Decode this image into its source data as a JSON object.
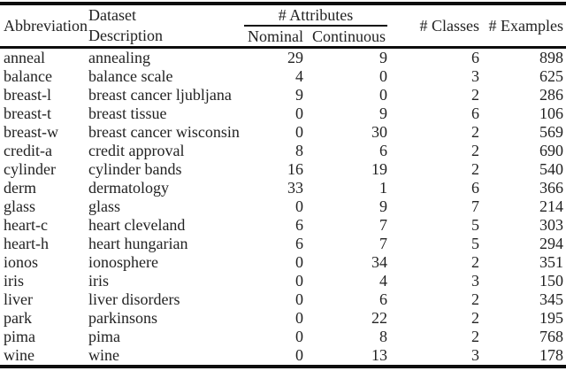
{
  "colors": {
    "background": "#ffffff",
    "text": "#222222",
    "rule": "#0d0d0d"
  },
  "table": {
    "header": {
      "abbreviation": "Abbreviation",
      "dataset_line1": "Dataset",
      "dataset_line2": "Description",
      "attributes_group": "# Attributes",
      "nominal": "Nominal",
      "continuous": "Continuous",
      "classes": "# Classes",
      "examples": "# Examples"
    },
    "row_keys": [
      "abbr",
      "desc",
      "nominal",
      "continuous",
      "classes",
      "examples"
    ],
    "rows": [
      {
        "abbr": "anneal",
        "desc": "annealing",
        "nominal": 29,
        "continuous": 9,
        "classes": 6,
        "examples": 898
      },
      {
        "abbr": "balance",
        "desc": "balance scale",
        "nominal": 4,
        "continuous": 0,
        "classes": 3,
        "examples": 625
      },
      {
        "abbr": "breast-l",
        "desc": "breast cancer ljubljana",
        "nominal": 9,
        "continuous": 0,
        "classes": 2,
        "examples": 286
      },
      {
        "abbr": "breast-t",
        "desc": "breast tissue",
        "nominal": 0,
        "continuous": 9,
        "classes": 6,
        "examples": 106
      },
      {
        "abbr": "breast-w",
        "desc": "breast cancer wisconsin",
        "nominal": 0,
        "continuous": 30,
        "classes": 2,
        "examples": 569
      },
      {
        "abbr": "credit-a",
        "desc": "credit approval",
        "nominal": 8,
        "continuous": 6,
        "classes": 2,
        "examples": 690
      },
      {
        "abbr": "cylinder",
        "desc": "cylinder bands",
        "nominal": 16,
        "continuous": 19,
        "classes": 2,
        "examples": 540
      },
      {
        "abbr": "derm",
        "desc": "dermatology",
        "nominal": 33,
        "continuous": 1,
        "classes": 6,
        "examples": 366
      },
      {
        "abbr": "glass",
        "desc": "glass",
        "nominal": 0,
        "continuous": 9,
        "classes": 7,
        "examples": 214
      },
      {
        "abbr": "heart-c",
        "desc": "heart cleveland",
        "nominal": 6,
        "continuous": 7,
        "classes": 5,
        "examples": 303
      },
      {
        "abbr": "heart-h",
        "desc": "heart hungarian",
        "nominal": 6,
        "continuous": 7,
        "classes": 5,
        "examples": 294
      },
      {
        "abbr": "ionos",
        "desc": "ionosphere",
        "nominal": 0,
        "continuous": 34,
        "classes": 2,
        "examples": 351
      },
      {
        "abbr": "iris",
        "desc": "iris",
        "nominal": 0,
        "continuous": 4,
        "classes": 3,
        "examples": 150
      },
      {
        "abbr": "liver",
        "desc": "liver disorders",
        "nominal": 0,
        "continuous": 6,
        "classes": 2,
        "examples": 345
      },
      {
        "abbr": "park",
        "desc": "parkinsons",
        "nominal": 0,
        "continuous": 22,
        "classes": 2,
        "examples": 195
      },
      {
        "abbr": "pima",
        "desc": "pima",
        "nominal": 0,
        "continuous": 8,
        "classes": 2,
        "examples": 768
      },
      {
        "abbr": "wine",
        "desc": "wine",
        "nominal": 0,
        "continuous": 13,
        "classes": 3,
        "examples": 178
      }
    ]
  }
}
